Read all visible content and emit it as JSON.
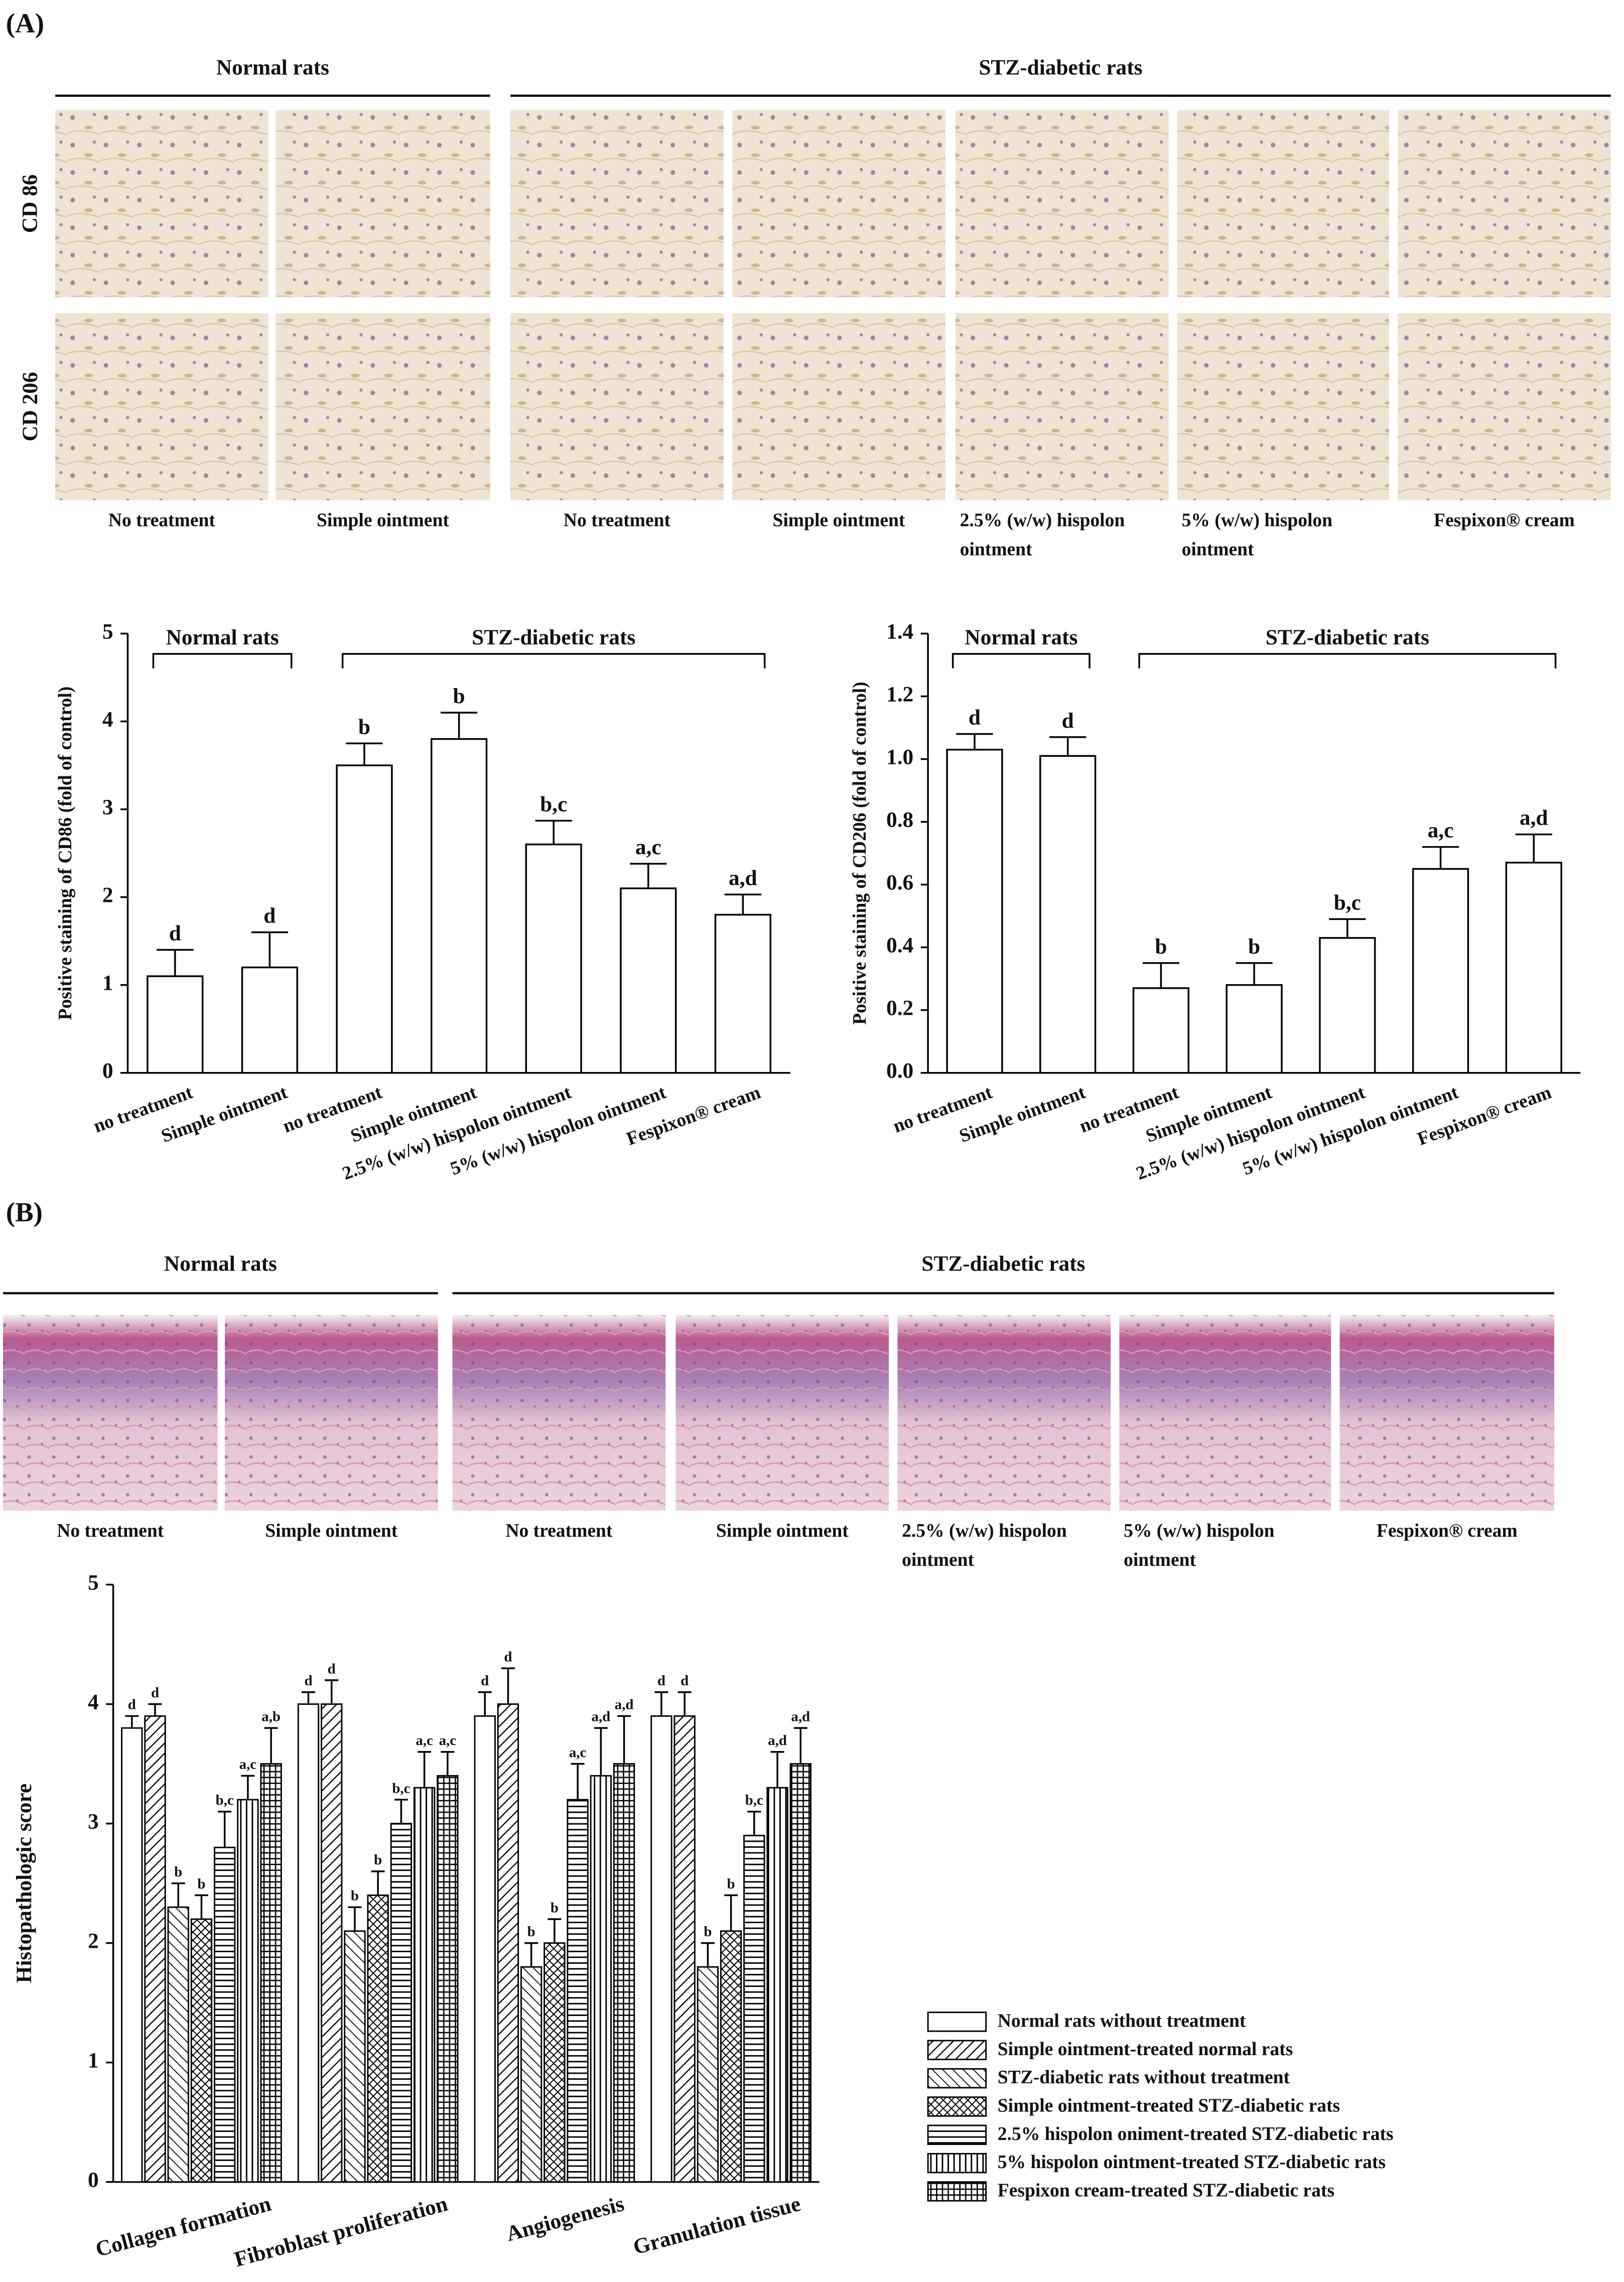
{
  "panel_a": {
    "label": "(A)",
    "groups": [
      {
        "label": "Normal rats"
      },
      {
        "label": "STZ-diabetic rats"
      }
    ],
    "rows": [
      "CD 86",
      "CD 206"
    ],
    "captions": [
      [
        "No treatment"
      ],
      [
        "Simple ointment"
      ],
      [
        "No treatment"
      ],
      [
        "Simple ointment"
      ],
      [
        "2.5% (w/w) hispolon",
        "ointment"
      ],
      [
        "5% (w/w) hispolon",
        "ointment"
      ],
      [
        "Fespixon® cream"
      ]
    ]
  },
  "panel_b": {
    "label": "(B)",
    "groups": [
      {
        "label": "Normal rats"
      },
      {
        "label": "STZ-diabetic rats"
      }
    ],
    "captions": [
      [
        "No treatment"
      ],
      [
        "Simple ointment"
      ],
      [
        "No treatment"
      ],
      [
        "Simple ointment"
      ],
      [
        "2.5% (w/w) hispolon",
        "ointment"
      ],
      [
        "5% (w/w) hispolon",
        "ointment"
      ],
      [
        "Fespixon® cream"
      ]
    ]
  },
  "chart_data": [
    {
      "type": "bar",
      "ylabel": "Positive staining of CD86 (fold of control)",
      "categories": [
        "no treatment",
        "Simple ointment",
        "no treatment",
        "Simple ointment",
        "2.5% (w/w) hispolon ointment",
        "5% (w/w) hispolon ointment",
        "Fespixon® cream"
      ],
      "values": [
        1.1,
        1.2,
        3.5,
        3.8,
        2.6,
        2.1,
        1.8
      ],
      "errors": [
        0.3,
        0.4,
        0.25,
        0.3,
        0.27,
        0.28,
        0.23
      ],
      "annotations": [
        "d",
        "d",
        "b",
        "b",
        "b,c",
        "a,c",
        "a,d"
      ],
      "groups": [
        {
          "label": "Normal rats",
          "count": 2
        },
        {
          "label": "STZ-diabetic rats",
          "count": 5
        }
      ],
      "color": "#ffffff",
      "edgecolor": "#000000",
      "ylim": [
        0,
        5
      ],
      "yticks": [
        0,
        1,
        2,
        3,
        4,
        5
      ]
    },
    {
      "type": "bar",
      "ylabel": "Positive staining of CD206 (fold of control)",
      "categories": [
        "no treatment",
        "Simple ointment",
        "no treatment",
        "Simple ointment",
        "2.5% (w/w) hispolon ointment",
        "5% (w/w) hispolon ointment",
        "Fespixon® cream"
      ],
      "values": [
        1.03,
        1.01,
        0.27,
        0.28,
        0.43,
        0.65,
        0.67
      ],
      "errors": [
        0.05,
        0.06,
        0.08,
        0.07,
        0.06,
        0.07,
        0.09
      ],
      "annotations": [
        "d",
        "d",
        "b",
        "b",
        "b,c",
        "a,c",
        "a,d"
      ],
      "groups": [
        {
          "label": "Normal rats",
          "count": 2
        },
        {
          "label": "STZ-diabetic rats",
          "count": 5
        }
      ],
      "color": "#ffffff",
      "edgecolor": "#000000",
      "ylim": [
        0,
        1.4
      ],
      "yticks": [
        {
          "value": 0,
          "label": "0.0"
        },
        0.2,
        0.4,
        0.6,
        0.8,
        {
          "value": 1,
          "label": "1.0"
        },
        1.2,
        1.4
      ]
    },
    {
      "type": "grouped_bar",
      "ylabel": "Histopathologic score",
      "categories": [
        "Collagen formation",
        "Fibroblast proliferation",
        "Angiogenesis",
        "Granulation tissue"
      ],
      "series": [
        {
          "name": "Normal rats without treatment",
          "pattern": "none",
          "values": [
            3.8,
            4.0,
            3.9,
            3.9
          ],
          "errors": [
            0.1,
            0.1,
            0.2,
            0.2
          ],
          "annotations": [
            "d",
            "d",
            "d",
            "d"
          ]
        },
        {
          "name": "Simple ointment-treated normal rats",
          "pattern": "diagonal",
          "values": [
            3.9,
            4.0,
            4.0,
            3.9
          ],
          "errors": [
            0.1,
            0.2,
            0.3,
            0.2
          ],
          "annotations": [
            "d",
            "d",
            "d",
            "d"
          ]
        },
        {
          "name": "STZ-diabetic rats without treatment",
          "pattern": "back-diagonal",
          "values": [
            2.3,
            2.1,
            1.8,
            1.8
          ],
          "errors": [
            0.2,
            0.2,
            0.2,
            0.2
          ],
          "annotations": [
            "b",
            "b",
            "b",
            "b"
          ]
        },
        {
          "name": "Simple ointment-treated STZ-diabetic rats",
          "pattern": "crosshatch",
          "values": [
            2.2,
            2.4,
            2.0,
            2.1
          ],
          "errors": [
            0.2,
            0.2,
            0.2,
            0.3
          ],
          "annotations": [
            "b",
            "b",
            "b",
            "b"
          ]
        },
        {
          "name": "2.5% hispolon oniment-treated STZ-diabetic rats",
          "pattern": "horizontal",
          "values": [
            2.8,
            3.0,
            3.2,
            2.9
          ],
          "errors": [
            0.3,
            0.2,
            0.3,
            0.2
          ],
          "annotations": [
            "b,c",
            "b,c",
            "a,c",
            "b,c"
          ]
        },
        {
          "name": "5% hispolon ointment-treated STZ-diabetic rats",
          "pattern": "vertical",
          "values": [
            3.2,
            3.3,
            3.4,
            3.3
          ],
          "errors": [
            0.2,
            0.3,
            0.4,
            0.3
          ],
          "annotations": [
            "a,c",
            "a,c",
            "a,d",
            "a,d"
          ]
        },
        {
          "name": "Fespixon cream-treated STZ-diabetic rats",
          "pattern": "grid",
          "values": [
            3.5,
            3.4,
            3.5,
            3.5
          ],
          "errors": [
            0.3,
            0.2,
            0.4,
            0.3
          ],
          "annotations": [
            "a,b",
            "a,c",
            "a,d",
            "a,d"
          ]
        }
      ],
      "edgecolor": "#000000",
      "legend": "lower right",
      "ylim": [
        0,
        5
      ],
      "yticks": [
        0,
        1,
        2,
        3,
        4,
        5
      ]
    }
  ]
}
